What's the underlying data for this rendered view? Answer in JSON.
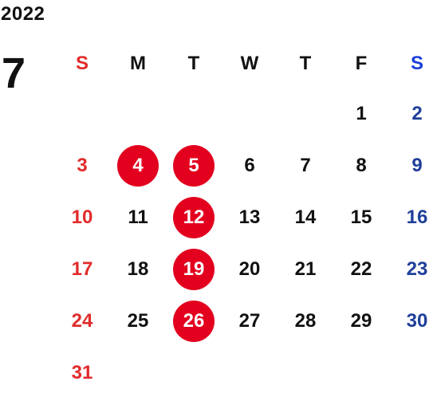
{
  "calendar": {
    "year": "2022",
    "month": "7",
    "weekdays": [
      "S",
      "M",
      "T",
      "W",
      "T",
      "F",
      "S"
    ],
    "start_offset": 5,
    "days": [
      "1",
      "2",
      "3",
      "4",
      "5",
      "6",
      "7",
      "8",
      "9",
      "10",
      "11",
      "12",
      "13",
      "14",
      "15",
      "16",
      "17",
      "18",
      "19",
      "20",
      "21",
      "22",
      "23",
      "24",
      "25",
      "26",
      "27",
      "28",
      "29",
      "30",
      "31"
    ],
    "highlighted_days": [
      "4",
      "5",
      "12",
      "19",
      "26"
    ],
    "colors": {
      "sunday": "#e12b2b",
      "saturday_header": "#1a3fd8",
      "saturday_day": "#1f3f99",
      "weekday": "#111111",
      "highlight_bg": "#e2001e",
      "highlight_text": "#ffffff"
    }
  }
}
